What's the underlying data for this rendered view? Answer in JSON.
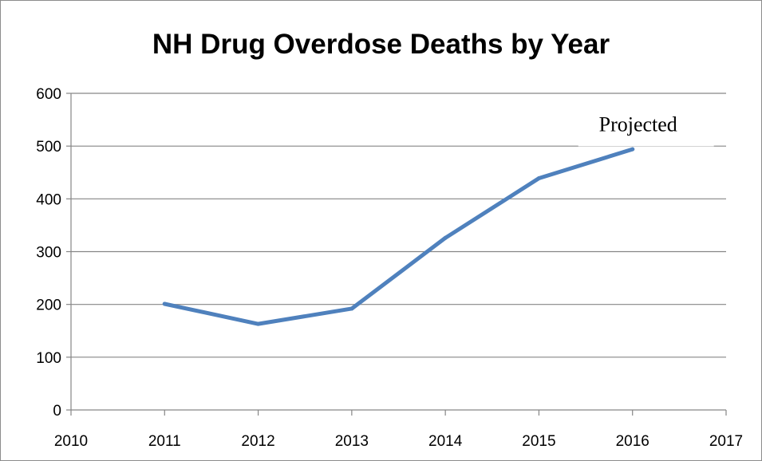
{
  "chart_data": {
    "type": "line",
    "title": "NH Drug Overdose Deaths by Year",
    "xlabel": "",
    "ylabel": "",
    "xlim": [
      2010,
      2017
    ],
    "ylim": [
      0,
      600
    ],
    "x_ticks": [
      2010,
      2011,
      2012,
      2013,
      2014,
      2015,
      2016,
      2017
    ],
    "y_ticks": [
      0,
      100,
      200,
      300,
      400,
      500,
      600
    ],
    "grid": "horizontal",
    "legend": "none",
    "series": [
      {
        "x": [
          2011,
          2012,
          2013,
          2014,
          2015,
          2016
        ],
        "y": [
          201,
          163,
          192,
          326,
          439,
          494
        ],
        "color": "#4f81bd"
      }
    ],
    "annotations": [
      {
        "text": "Projected",
        "x": 2016,
        "y": 542
      }
    ]
  }
}
